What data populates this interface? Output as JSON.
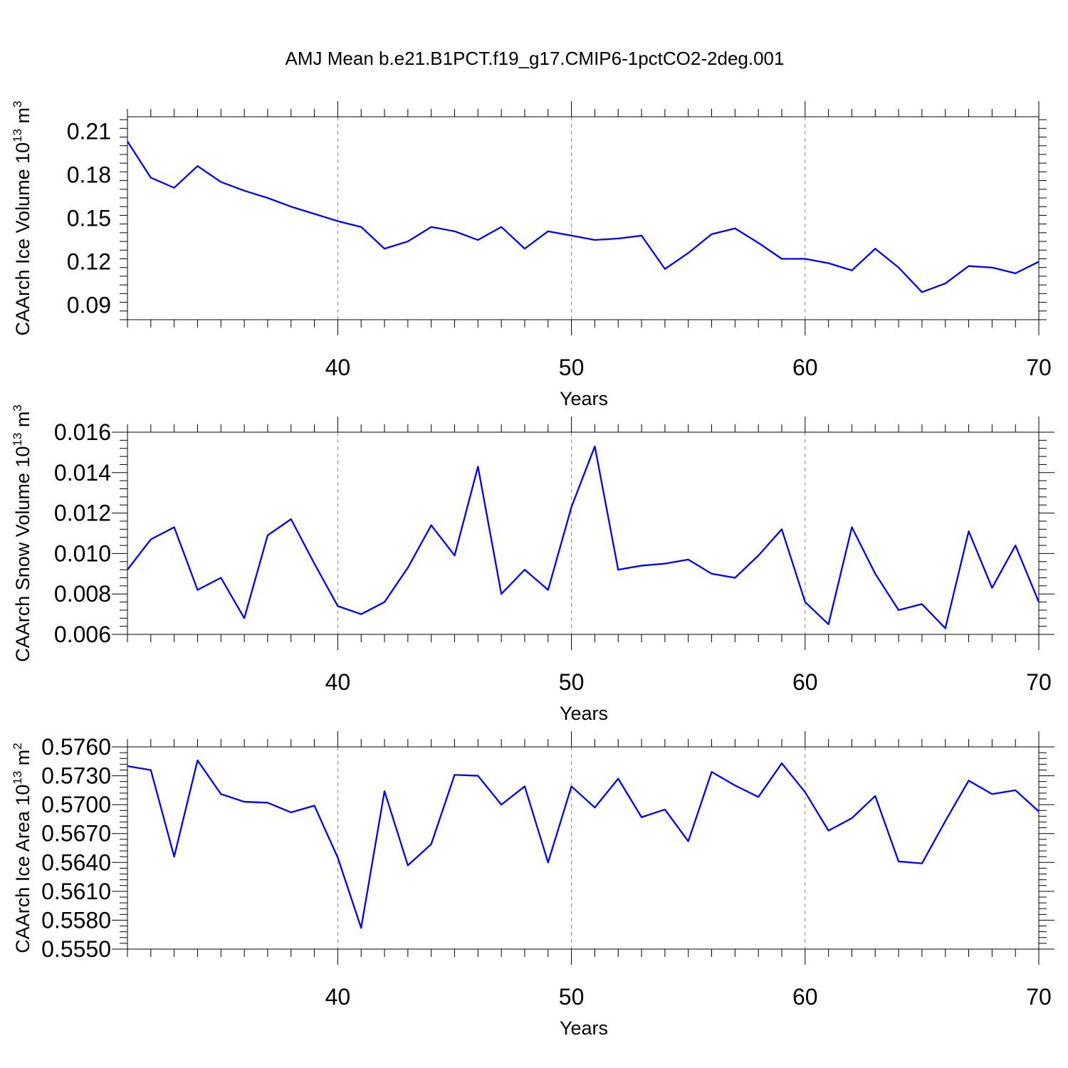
{
  "title": "AMJ Mean b.e21.B1PCT.f19_g17.CMIP6-1pctCO2-2deg.001",
  "line_color": "#0000ff",
  "chart_data": [
    {
      "type": "line",
      "ylabel_main": "CAArch Ice Volume 10",
      "ylabel_exp": "13",
      "ylabel_unit": " m",
      "ylabel_unit_exp": "3",
      "xlabel": "Years",
      "xlim": [
        31,
        70
      ],
      "ylim": [
        0.08,
        0.22
      ],
      "xticks": [
        40,
        50,
        60,
        70
      ],
      "xtick_labels": [
        "40",
        "50",
        "60",
        "70"
      ],
      "yticks": [
        0.09,
        0.12,
        0.15,
        0.18,
        0.21
      ],
      "ytick_labels": [
        "0.09",
        "0.12",
        "0.15",
        "0.18",
        "0.21"
      ],
      "grid": "dashed vertical at major x ticks",
      "series": [
        {
          "x": [
            31,
            32,
            33,
            34,
            35,
            36,
            37,
            38,
            39,
            40,
            41,
            42,
            43,
            44,
            45,
            46,
            47,
            48,
            49,
            50,
            51,
            52,
            53,
            54,
            55,
            56,
            57,
            58,
            59,
            60,
            61,
            62,
            63,
            64,
            65,
            66,
            67,
            68,
            69,
            70
          ],
          "values": [
            0.203,
            0.178,
            0.171,
            0.186,
            0.175,
            0.169,
            0.164,
            0.158,
            0.153,
            0.148,
            0.144,
            0.129,
            0.134,
            0.144,
            0.141,
            0.135,
            0.144,
            0.129,
            0.141,
            0.138,
            0.135,
            0.136,
            0.138,
            0.115,
            0.126,
            0.139,
            0.143,
            0.133,
            0.122,
            0.122,
            0.119,
            0.114,
            0.129,
            0.116,
            0.099,
            0.105,
            0.117,
            0.116,
            0.112,
            0.12
          ]
        }
      ]
    },
    {
      "type": "line",
      "ylabel_main": "CAArch Snow Volume 10",
      "ylabel_exp": "13",
      "ylabel_unit": " m",
      "ylabel_unit_exp": "3",
      "xlabel": "Years",
      "xlim": [
        31,
        70
      ],
      "ylim": [
        0.006,
        0.016
      ],
      "xticks": [
        40,
        50,
        60,
        70
      ],
      "xtick_labels": [
        "40",
        "50",
        "60",
        "70"
      ],
      "yticks": [
        0.006,
        0.008,
        0.01,
        0.012,
        0.014,
        0.016
      ],
      "ytick_labels": [
        "0.006",
        "0.008",
        "0.010",
        "0.012",
        "0.014",
        "0.016"
      ],
      "grid": "dashed vertical at major x ticks",
      "series": [
        {
          "x": [
            31,
            32,
            33,
            34,
            35,
            36,
            37,
            38,
            39,
            40,
            41,
            42,
            43,
            44,
            45,
            46,
            47,
            48,
            49,
            50,
            51,
            52,
            53,
            54,
            55,
            56,
            57,
            58,
            59,
            60,
            61,
            62,
            63,
            64,
            65,
            66,
            67,
            68,
            69,
            70
          ],
          "values": [
            0.0092,
            0.0107,
            0.0113,
            0.0082,
            0.0088,
            0.0068,
            0.0109,
            0.0117,
            0.0095,
            0.0074,
            0.007,
            0.0076,
            0.0093,
            0.0114,
            0.0099,
            0.0143,
            0.008,
            0.0092,
            0.0082,
            0.0123,
            0.0153,
            0.0092,
            0.0094,
            0.0095,
            0.0097,
            0.009,
            0.0088,
            0.0099,
            0.0112,
            0.0076,
            0.0065,
            0.0113,
            0.009,
            0.0072,
            0.0075,
            0.0063,
            0.0111,
            0.0083,
            0.0104,
            0.0076
          ]
        }
      ]
    },
    {
      "type": "line",
      "ylabel_main": "CAArch Ice Area 10",
      "ylabel_exp": "13",
      "ylabel_unit": " m",
      "ylabel_unit_exp": "2",
      "xlabel": "Years",
      "xlim": [
        31,
        70
      ],
      "ylim": [
        0.555,
        0.576
      ],
      "xticks": [
        40,
        50,
        60,
        70
      ],
      "xtick_labels": [
        "40",
        "50",
        "60",
        "70"
      ],
      "yticks": [
        0.555,
        0.558,
        0.561,
        0.564,
        0.567,
        0.57,
        0.573,
        0.576
      ],
      "ytick_labels": [
        "0.5550",
        "0.5580",
        "0.5610",
        "0.5640",
        "0.5670",
        "0.5700",
        "0.5730",
        "0.5760"
      ],
      "grid": "dashed vertical at major x ticks",
      "series": [
        {
          "x": [
            31,
            32,
            33,
            34,
            35,
            36,
            37,
            38,
            39,
            40,
            41,
            42,
            43,
            44,
            45,
            46,
            47,
            48,
            49,
            50,
            51,
            52,
            53,
            54,
            55,
            56,
            57,
            58,
            59,
            60,
            61,
            62,
            63,
            64,
            65,
            66,
            67,
            68,
            69,
            70
          ],
          "values": [
            0.574,
            0.5736,
            0.5646,
            0.5746,
            0.5711,
            0.5703,
            0.5702,
            0.5692,
            0.5699,
            0.5645,
            0.5572,
            0.5714,
            0.5637,
            0.5659,
            0.5731,
            0.573,
            0.57,
            0.5719,
            0.564,
            0.5719,
            0.5697,
            0.5727,
            0.5687,
            0.5695,
            0.5662,
            0.5734,
            0.572,
            0.5708,
            0.5743,
            0.5713,
            0.5673,
            0.5686,
            0.5709,
            0.5641,
            0.5639,
            0.5683,
            0.5725,
            0.5711,
            0.5715,
            0.5693
          ]
        }
      ]
    }
  ]
}
